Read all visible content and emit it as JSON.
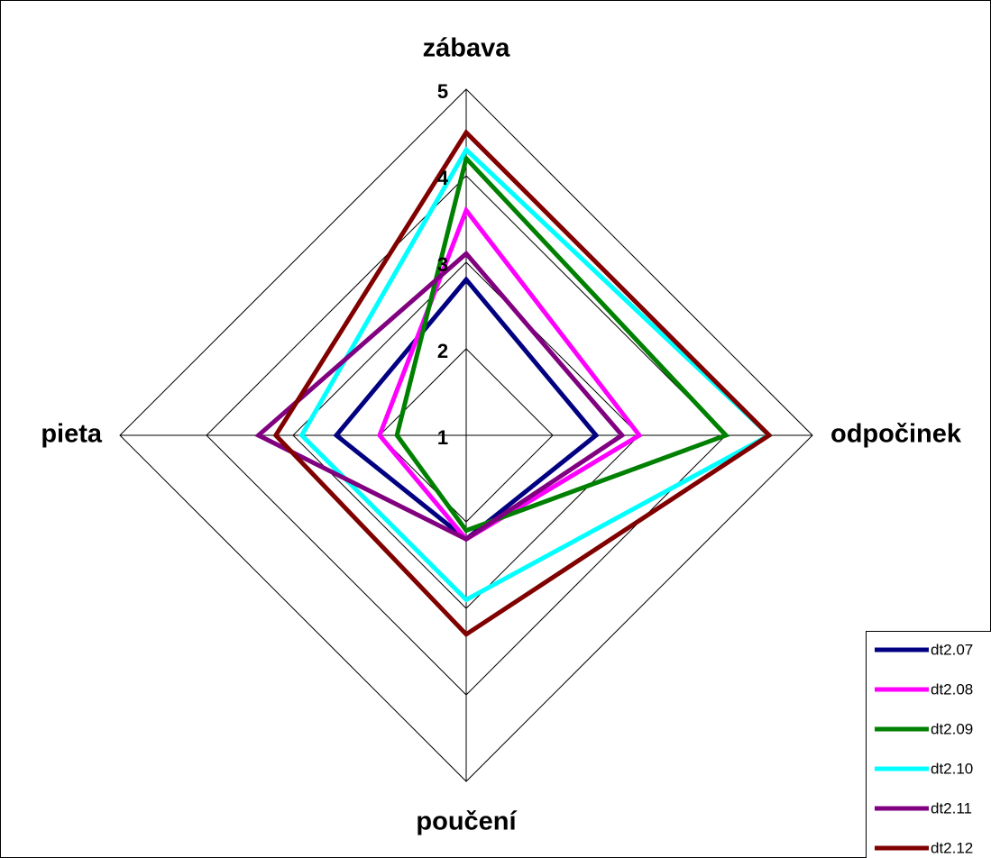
{
  "chart_data": {
    "type": "radar",
    "categories": [
      "zábava",
      "odpočinek",
      "poučení",
      "pieta"
    ],
    "rlim": [
      1,
      5
    ],
    "rticks": [
      1,
      2,
      3,
      4,
      5
    ],
    "grid": true,
    "series": [
      {
        "name": "dt2.07",
        "color": "#000080",
        "values": [
          2.8,
          2.5,
          2.2,
          2.5
        ]
      },
      {
        "name": "dt2.08",
        "color": "#ff00ff",
        "values": [
          3.6,
          3.0,
          2.2,
          2.0
        ]
      },
      {
        "name": "dt2.09",
        "color": "#008000",
        "values": [
          4.2,
          4.0,
          2.1,
          1.8
        ]
      },
      {
        "name": "dt2.10",
        "color": "#00ffff",
        "values": [
          4.3,
          4.5,
          2.9,
          2.9
        ]
      },
      {
        "name": "dt2.11",
        "color": "#800080",
        "values": [
          3.1,
          2.8,
          2.2,
          3.4
        ]
      },
      {
        "name": "dt2.12",
        "color": "#800000",
        "values": [
          4.5,
          4.5,
          3.3,
          3.2
        ]
      }
    ]
  }
}
